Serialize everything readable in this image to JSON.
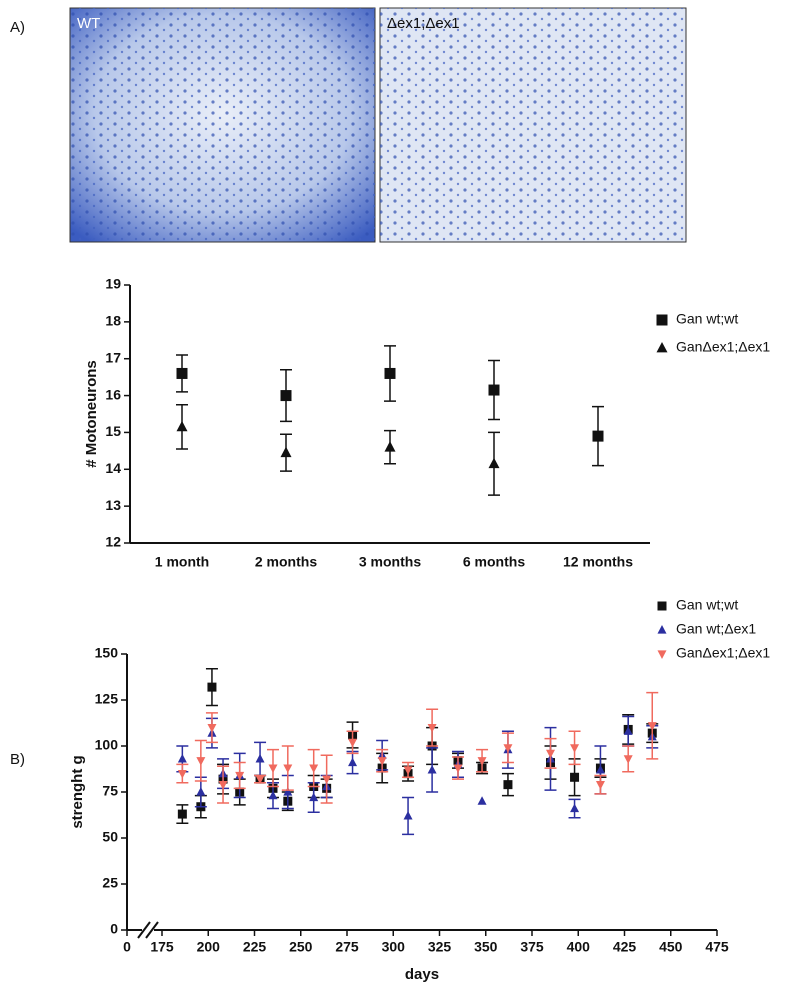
{
  "panel_labels": [
    "A)",
    "B)"
  ],
  "images": [
    {
      "label": "WT"
    },
    {
      "label": "Δex1;Δex1"
    }
  ],
  "chart_data": [
    {
      "type": "scatter",
      "ylabel": "# Motoneurons",
      "categories": [
        "1 month",
        "2 months",
        "3 months",
        "6 months",
        "12 months"
      ],
      "ylim": [
        12,
        19
      ],
      "yticks": [
        12,
        13,
        14,
        15,
        16,
        17,
        18,
        19
      ],
      "series": [
        {
          "name": "Gan wt;wt",
          "color": "#111111",
          "marker": "square",
          "values": [
            16.6,
            16.0,
            16.6,
            16.15,
            14.9
          ],
          "errors": [
            0.5,
            0.7,
            0.75,
            0.8,
            0.8
          ]
        },
        {
          "name": "GanΔex1;Δex1",
          "color": "#111111",
          "marker": "triangle",
          "values": [
            15.15,
            14.45,
            14.6,
            14.15,
            null
          ],
          "errors": [
            0.6,
            0.5,
            0.45,
            0.85,
            null
          ]
        }
      ]
    },
    {
      "type": "scatter",
      "xlabel": "days",
      "ylabel": "strenght g",
      "x": [
        186,
        196,
        202,
        208,
        217,
        228,
        235,
        243,
        257,
        264,
        278,
        294,
        308,
        321,
        335,
        348,
        362,
        385,
        398,
        412,
        427,
        440
      ],
      "xlim": [
        0,
        475
      ],
      "x_break": [
        0,
        175
      ],
      "xticks": [
        0,
        175,
        200,
        225,
        250,
        275,
        300,
        325,
        350,
        375,
        400,
        425,
        450,
        475
      ],
      "ylim": [
        0,
        150
      ],
      "yticks": [
        0,
        25,
        50,
        75,
        100,
        125,
        150
      ],
      "series": [
        {
          "name": "Gan wt;wt",
          "color": "#111111",
          "marker": "square",
          "values": [
            63,
            67,
            132,
            82,
            75,
            82,
            77,
            70,
            78,
            77,
            106,
            88,
            85,
            100,
            92,
            88,
            79,
            91,
            83,
            88,
            109,
            107
          ],
          "errors": [
            5,
            6,
            10,
            8,
            7,
            2,
            5,
            5,
            6,
            5,
            7,
            8,
            4,
            10,
            4,
            3,
            6,
            9,
            10,
            5,
            8,
            5
          ]
        },
        {
          "name": "Gan wt;Δex1",
          "color": "#2b2fa0",
          "marker": "triangle",
          "values": [
            93,
            75,
            107,
            85,
            84,
            93,
            73,
            75,
            72,
            78,
            91,
            95,
            62,
            87,
            90,
            70,
            98,
            93,
            66,
            87,
            108,
            105
          ],
          "errors": [
            7,
            8,
            8,
            8,
            12,
            9,
            7,
            9,
            8,
            6,
            6,
            8,
            10,
            12,
            7,
            null,
            10,
            17,
            5,
            13,
            8,
            6
          ]
        },
        {
          "name": "GanΔex1;Δex1",
          "color": "#f06a5e",
          "marker": "triangle-down",
          "values": [
            85,
            92,
            110,
            79,
            84,
            82,
            88,
            88,
            88,
            82,
            102,
            92,
            87,
            110,
            88,
            92,
            99,
            96,
            99,
            79,
            93,
            111
          ],
          "errors": [
            5,
            11,
            8,
            10,
            7,
            2,
            10,
            12,
            10,
            13,
            6,
            6,
            4,
            10,
            6,
            6,
            8,
            8,
            9,
            5,
            7,
            18
          ]
        }
      ]
    }
  ]
}
